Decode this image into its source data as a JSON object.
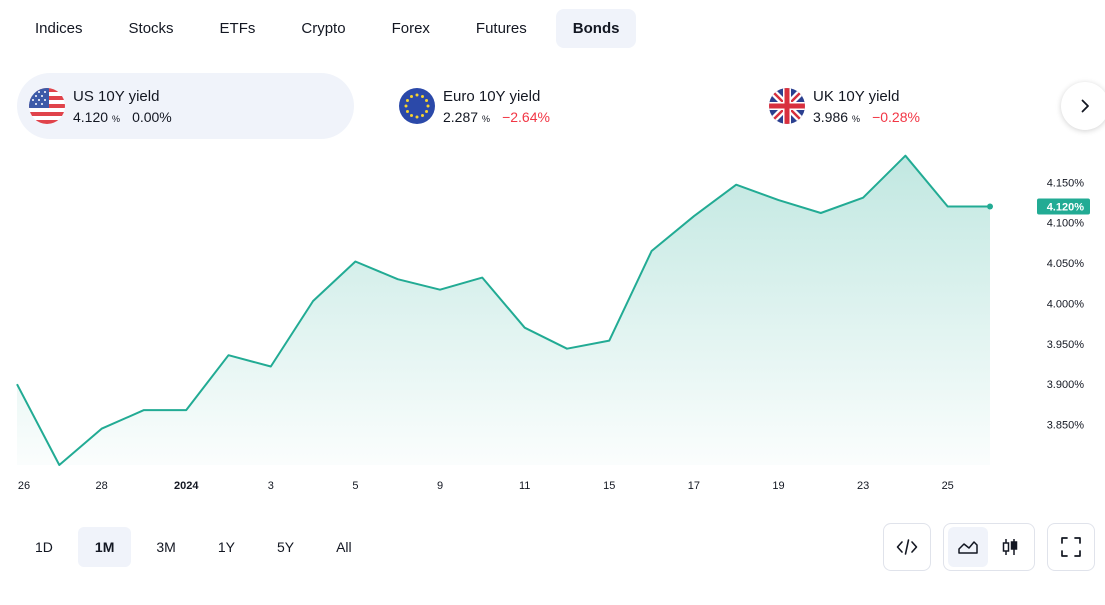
{
  "tabs": [
    {
      "label": "Indices",
      "active": false
    },
    {
      "label": "Stocks",
      "active": false
    },
    {
      "label": "ETFs",
      "active": false
    },
    {
      "label": "Crypto",
      "active": false
    },
    {
      "label": "Forex",
      "active": false
    },
    {
      "label": "Futures",
      "active": false
    },
    {
      "label": "Bonds",
      "active": true
    }
  ],
  "tickers": [
    {
      "name": "US 10Y yield",
      "value": "4.120",
      "unit": "%",
      "change": "0.00%",
      "flag": "us-flag-icon",
      "active": true
    },
    {
      "name": "Euro 10Y yield",
      "value": "2.287",
      "unit": "%",
      "change": "−2.64%",
      "flag": "eu-flag-icon",
      "active": false
    },
    {
      "name": "UK 10Y yield",
      "value": "3.986",
      "unit": "%",
      "change": "−0.28%",
      "flag": "uk-flag-icon",
      "active": false
    }
  ],
  "colors": {
    "line": "#22ab94",
    "negative": "#f23645",
    "active_bg": "#f0f3fa"
  },
  "chart_data": {
    "type": "area",
    "x": [
      "Dec 26",
      "Dec 27",
      "Dec 28",
      "Dec 29",
      "Dec 31",
      "Jan 2",
      "Jan 3",
      "Jan 4",
      "Jan 5",
      "Jan 8",
      "Jan 9",
      "Jan 10",
      "Jan 11",
      "Jan 12",
      "Jan 15",
      "Jan 16",
      "Jan 17",
      "Jan 18",
      "Jan 19",
      "Jan 22",
      "Jan 23",
      "Jan 24",
      "Jan 25",
      "Jan 26"
    ],
    "values": [
      3.9,
      3.8,
      3.845,
      3.868,
      3.868,
      3.936,
      3.922,
      4.003,
      4.052,
      4.03,
      4.017,
      4.032,
      3.97,
      3.944,
      3.954,
      4.065,
      4.108,
      4.147,
      4.128,
      4.112,
      4.131,
      4.183,
      4.12,
      4.12
    ],
    "last_value_label": "4.120%",
    "y_ticks": [
      "4.150%",
      "4.100%",
      "4.050%",
      "4.000%",
      "3.950%",
      "3.900%",
      "3.850%"
    ],
    "x_ticks": [
      {
        "label": "26",
        "bold": false
      },
      {
        "label": "28",
        "bold": false
      },
      {
        "label": "2024",
        "bold": true
      },
      {
        "label": "3",
        "bold": false
      },
      {
        "label": "5",
        "bold": false
      },
      {
        "label": "9",
        "bold": false
      },
      {
        "label": "11",
        "bold": false
      },
      {
        "label": "15",
        "bold": false
      },
      {
        "label": "17",
        "bold": false
      },
      {
        "label": "19",
        "bold": false
      },
      {
        "label": "23",
        "bold": false
      },
      {
        "label": "25",
        "bold": false
      }
    ],
    "ylim": [
      3.8,
      4.19
    ]
  },
  "ranges": [
    {
      "label": "1D",
      "active": false
    },
    {
      "label": "1M",
      "active": true
    },
    {
      "label": "3M",
      "active": false
    },
    {
      "label": "1Y",
      "active": false
    },
    {
      "label": "5Y",
      "active": false
    },
    {
      "label": "All",
      "active": false
    }
  ],
  "tools": {
    "embed": "code-icon",
    "area": "area-chart-icon",
    "candles": "candlestick-icon",
    "fullscreen": "fullscreen-icon"
  }
}
